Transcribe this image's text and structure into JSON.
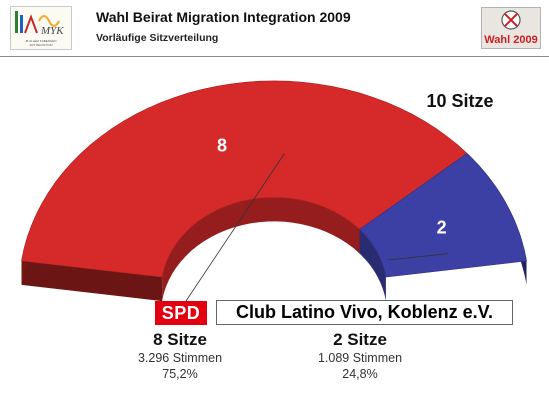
{
  "header": {
    "title": "Wahl Beirat Migration Integration 2009",
    "subtitle": "Vorläufige Sitzverteilung",
    "left_logo_text": "MYK",
    "left_logo_small_text": "IB ALLEM KABENGEN\nART REGISTION",
    "right_logo_text": "Wahl 2009"
  },
  "colors": {
    "spd": "#d62a2a",
    "clv": "#3c3fa3"
  },
  "chart_data": {
    "type": "pie",
    "subtype": "3d-half-donut",
    "total_label": "10 Sitze",
    "slices": [
      {
        "party": "SPD",
        "seats": 8,
        "seat_label": "8 Sitze",
        "votes": "3.296 Stimmen",
        "percent": "75,2%",
        "color": "#d62a2a"
      },
      {
        "party": "Club Latino Vivo, Koblenz e.V.",
        "seats": 2,
        "seat_label": "2 Sitze",
        "votes": "1.089 Stimmen",
        "percent": "24,8%",
        "color": "#3c3fa3"
      }
    ]
  }
}
